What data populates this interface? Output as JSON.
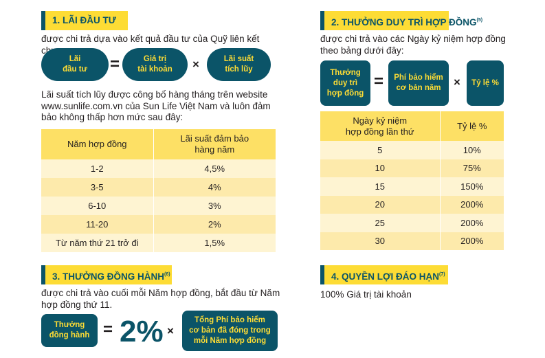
{
  "section1": {
    "title": "1. LÃI ĐẦU TƯ",
    "intro": "được chi trả dựa vào kết quả đầu tư của Quỹ liên kết chung",
    "formula": {
      "result": "Lãi\nđầu tư",
      "equals": "=",
      "term1": "Giá trị\ntài khoản",
      "times": "×",
      "term2": "Lãi suất\ntích lũy"
    },
    "note": "Lãi suất tích lũy được công bố hàng tháng trên website www.sunlife.com.vn của Sun Life Việt Nam và luôn đảm bảo không thấp hơn mức sau đây:",
    "table": {
      "headers": [
        "Năm hợp đồng",
        "Lãi suất đảm bảo\nhàng năm"
      ],
      "rows": [
        [
          "1-2",
          "4,5%"
        ],
        [
          "3-5",
          "4%"
        ],
        [
          "6-10",
          "3%"
        ],
        [
          "11-20",
          "2%"
        ],
        [
          "Từ năm thứ 21 trở đi",
          "1,5%"
        ]
      ]
    }
  },
  "section2": {
    "title": "2. THƯỞNG DUY TRÌ HỢP ĐỒNG",
    "footnote": "(5)",
    "intro": "được chi trả vào các Ngày kỷ niệm hợp đồng theo bảng dưới đây:",
    "formula": {
      "result": "Thưởng\nduy trì\nhợp đồng",
      "equals": "=",
      "term1": "Phí bảo hiểm\ncơ bản năm",
      "times": "×",
      "term2": "Tỷ lệ %"
    },
    "table": {
      "headers": [
        "Ngày kỷ niệm\nhợp đồng lần thứ",
        "Tỷ lệ %"
      ],
      "rows": [
        [
          "5",
          "10%"
        ],
        [
          "10",
          "75%"
        ],
        [
          "15",
          "150%"
        ],
        [
          "20",
          "200%"
        ],
        [
          "25",
          "200%"
        ],
        [
          "30",
          "200%"
        ]
      ]
    }
  },
  "section3": {
    "title": "3. THƯỞNG ĐỒNG HÀNH",
    "footnote": "(6)",
    "intro": "được chi trả vào cuối mỗi Năm hợp đồng, bắt đầu từ Năm hợp đồng thứ 11.",
    "formula": {
      "result": "Thưởng\nđồng hành",
      "equals": "=",
      "rate": "2%",
      "times": "×",
      "term": "Tổng Phí bảo hiểm\ncơ bản đã đóng trong\nmỗi Năm hợp đồng"
    }
  },
  "section4": {
    "title": "4. QUYỀN LỢI ĐÁO HẠN",
    "footnote": "(7)",
    "text": "100% Giá trị tài khoản"
  },
  "colors": {
    "teal": "#0b5468",
    "yellow": "#fddc35"
  }
}
